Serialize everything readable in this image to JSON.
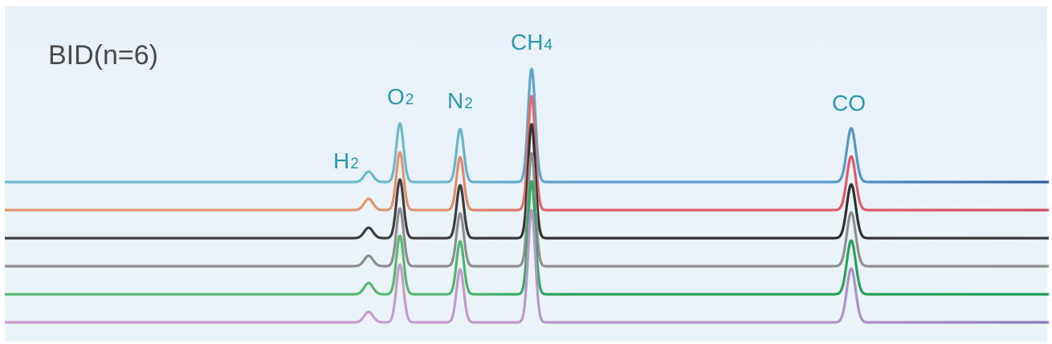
{
  "chart_data": {
    "type": "line",
    "title": "BID(n=6)",
    "peak_labels": [
      {
        "base": "H",
        "sub": "2"
      },
      {
        "base": "O",
        "sub": "2"
      },
      {
        "base": "N",
        "sub": "2"
      },
      {
        "base": "CH",
        "sub": "4"
      },
      {
        "base": "CO",
        "sub": ""
      }
    ],
    "peaks": [
      {
        "name": "H2",
        "height": 13
      },
      {
        "name": "O2",
        "height": 73
      },
      {
        "name": "N2",
        "height": 66
      },
      {
        "name": "CH4",
        "height": 141
      },
      {
        "name": "CO",
        "height": 67
      }
    ],
    "series": [
      {
        "values": [
          13,
          73,
          66,
          141,
          67
        ]
      },
      {
        "values": [
          14,
          72,
          66,
          142,
          67
        ]
      },
      {
        "values": [
          13,
          73,
          66,
          142,
          67
        ]
      },
      {
        "values": [
          13,
          72,
          66,
          141,
          67
        ]
      },
      {
        "values": [
          14,
          73,
          66,
          141,
          67
        ]
      },
      {
        "values": [
          13,
          72,
          66,
          140,
          67
        ]
      }
    ],
    "grid": false,
    "legend": "none",
    "colors": {
      "background_top": "#e8f1f8",
      "background_bottom": "#eaf4f8",
      "label": "#2a97ad",
      "title": "#4a4a4a",
      "series_left": [
        "#6cb8cc",
        "#e0966a",
        "#3f3f3f",
        "#8d8d8d",
        "#58b872",
        "#c59bcd"
      ],
      "series_right": [
        "#2b5e9e",
        "#cf4e62",
        "#3a3a3a",
        "#8a8a8a",
        "#1a9a4e",
        "#8a78b8"
      ],
      "series_peak": [
        "#5a9fcb",
        "#e05c6c",
        "#2e2e2e",
        "#909090",
        "#2aa35a",
        "#b394cc"
      ]
    }
  }
}
